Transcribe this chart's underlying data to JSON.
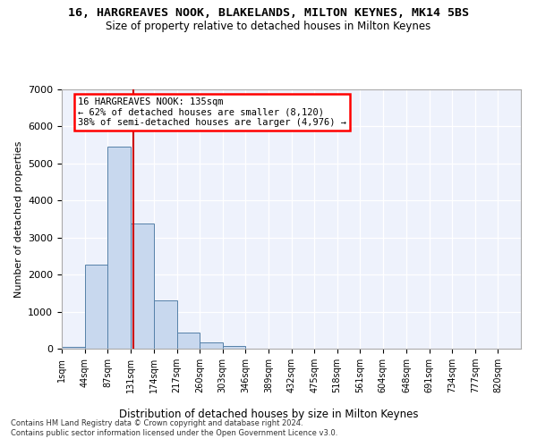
{
  "title1": "16, HARGREAVES NOOK, BLAKELANDS, MILTON KEYNES, MK14 5BS",
  "title2": "Size of property relative to detached houses in Milton Keynes",
  "xlabel": "Distribution of detached houses by size in Milton Keynes",
  "ylabel": "Number of detached properties",
  "footer1": "Contains HM Land Registry data © Crown copyright and database right 2024.",
  "footer2": "Contains public sector information licensed under the Open Government Licence v3.0.",
  "annotation_line1": "16 HARGREAVES NOOK: 135sqm",
  "annotation_line2": "← 62% of detached houses are smaller (8,120)",
  "annotation_line3": "38% of semi-detached houses are larger (4,976) →",
  "bar_color": "#c8d8ee",
  "bar_edge_color": "#5580a8",
  "vline_color": "#cc0000",
  "vline_x": 135,
  "bins": [
    1,
    44,
    87,
    131,
    174,
    217,
    260,
    303,
    346,
    389,
    432,
    475,
    518,
    561,
    604,
    648,
    691,
    734,
    777,
    820,
    863
  ],
  "counts": [
    60,
    2270,
    5450,
    3380,
    1310,
    430,
    160,
    70,
    0,
    0,
    0,
    0,
    0,
    0,
    0,
    0,
    0,
    0,
    0,
    0
  ],
  "ylim": [
    0,
    7000
  ],
  "yticks": [
    0,
    1000,
    2000,
    3000,
    4000,
    5000,
    6000,
    7000
  ],
  "background_color": "#eef2fc",
  "figwidth": 6.0,
  "figheight": 5.0,
  "dpi": 100
}
